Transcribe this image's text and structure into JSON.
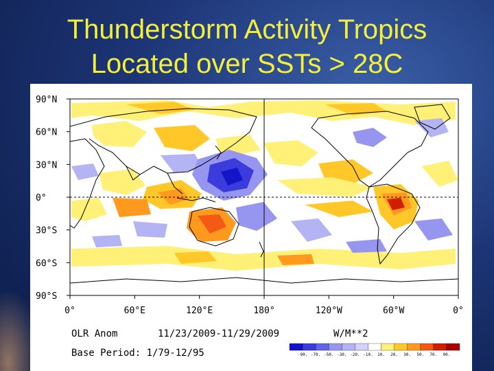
{
  "slide": {
    "title_line1": "Thunderstorm Activity Tropics",
    "title_line2": "Located over SSTs > 28C"
  },
  "colors": {
    "title": "#f4f03a",
    "background": "#1d3576",
    "coast": "#000000"
  },
  "chart_data": {
    "type": "heatmap",
    "title": "",
    "map_projection": "cylindrical equidistant, centered on 180°",
    "lat_ticks": [
      "90°N",
      "60°N",
      "30°N",
      "0°",
      "30°S",
      "60°S",
      "90°S"
    ],
    "lon_ticks": [
      "0°",
      "60°E",
      "120°E",
      "180°",
      "120°W",
      "60°W",
      "0°"
    ],
    "variable": "OLR Anom",
    "period": "11/23/2009-11/29/2009",
    "units": "W/M**2",
    "base_period": "Base Period: 1/79-12/95",
    "colorbar": {
      "levels": [
        "-90.",
        "-70.",
        "-50.",
        "-30.",
        "-20.",
        "-10.",
        "10.",
        "20.",
        "30.",
        "50.",
        "70.",
        "90."
      ],
      "colors": [
        "#1414c8",
        "#3c3cdc",
        "#6464e6",
        "#9696f0",
        "#b4b4f5",
        "#d2d2fa",
        "#ffffff",
        "#fff078",
        "#ffc828",
        "#ff9a1e",
        "#f55a14",
        "#d21e00",
        "#aa0000"
      ]
    },
    "grid": "dashed equator and 180° meridian",
    "legend_position": "bottom"
  }
}
